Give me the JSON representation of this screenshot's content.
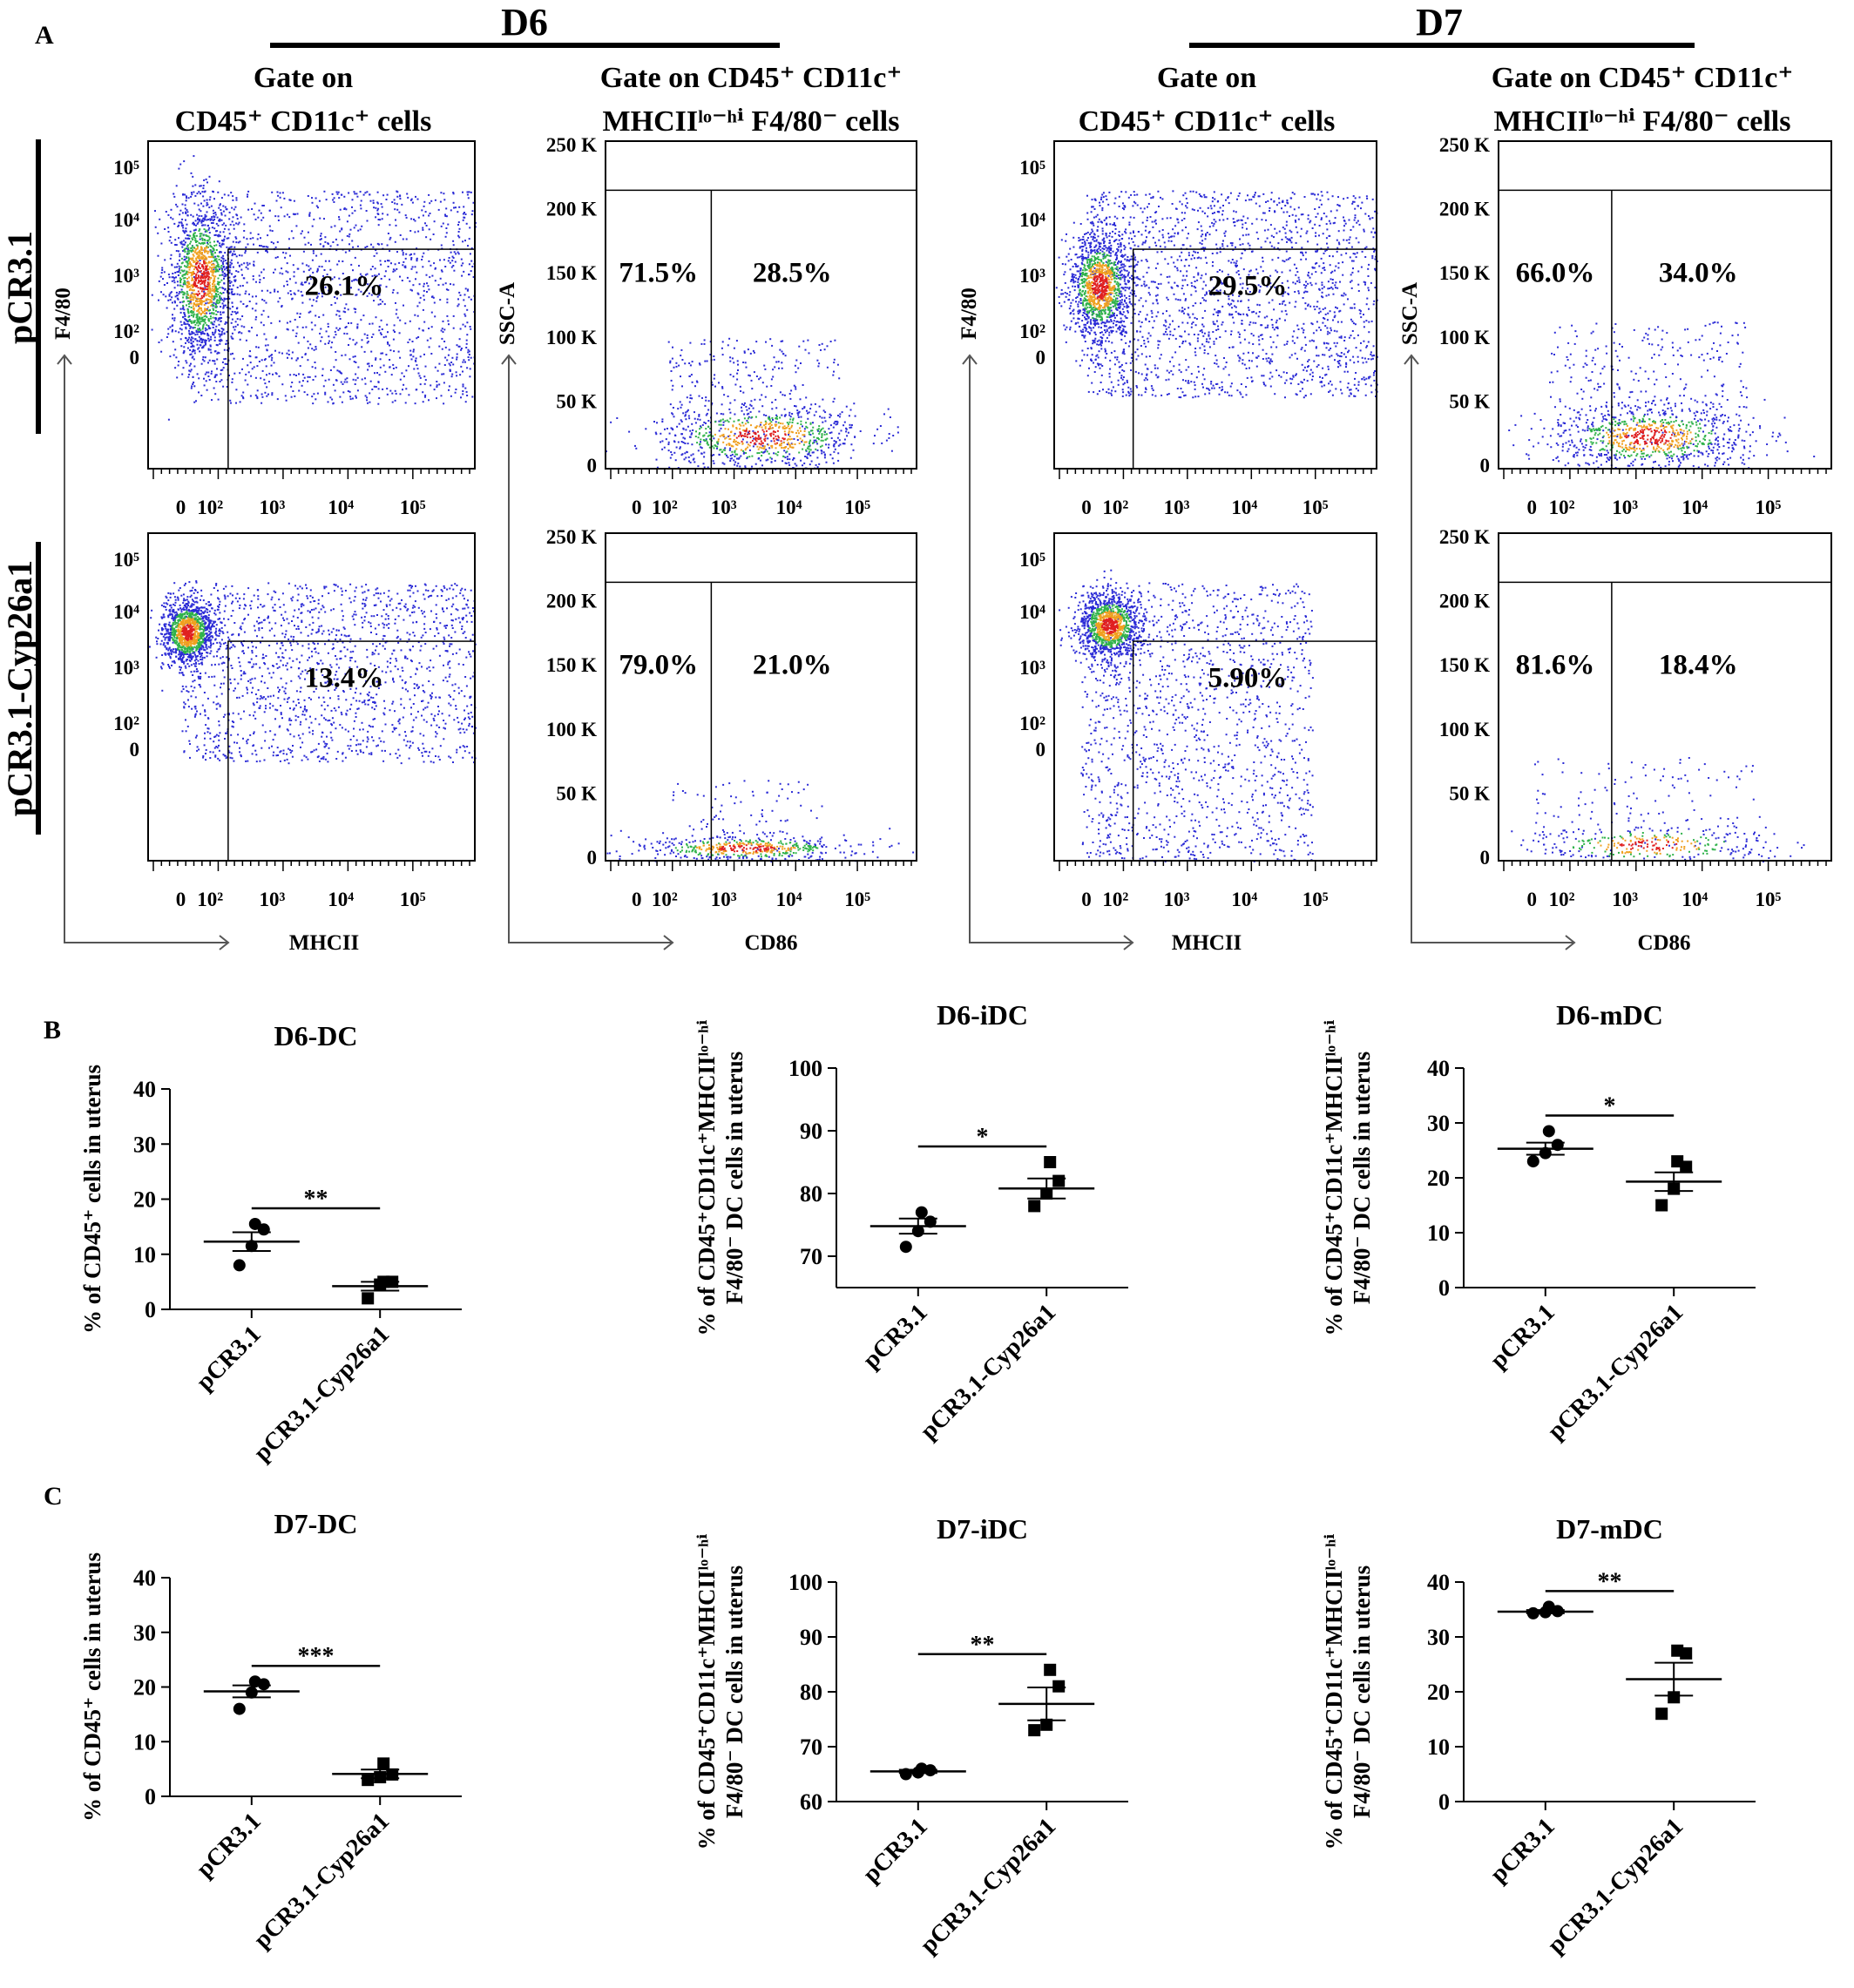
{
  "panel_labels": [
    "A",
    "B",
    "C"
  ],
  "group_labels": {
    "d6": "D6",
    "d7": "D7"
  },
  "row_labels": [
    "pCR3.1",
    "pCR3.1-Cyp26a1"
  ],
  "column_headers": {
    "gate1_line1": "Gate on",
    "gate1_line2": "CD45⁺ CD11c⁺ cells",
    "gate2_line1": "Gate on CD45⁺ CD11c⁺",
    "gate2_line2": "MHCIIˡᵒ⁻ʰⁱ F4/80⁻ cells"
  },
  "flow_axes": {
    "f480": "F4/80",
    "mhcii": "MHCII",
    "ssc": "SSC-A",
    "cd86": "CD86",
    "log_ticks": [
      "0",
      "10²",
      "10³",
      "10⁴",
      "10⁵"
    ],
    "ssc_ticks": [
      "0",
      "50 K",
      "100 K",
      "150 K",
      "200 K",
      "250 K"
    ]
  },
  "chart_data": [
    {
      "type": "scatter",
      "id": "flow-d6-pcr-mhcii",
      "group": "D6",
      "row": "pCR3.1",
      "xlabel": "MHCII",
      "ylabel": "F4/80",
      "gate_label": "26.1%",
      "gate": {
        "x_from": "10³ (approx. 300)",
        "y_to": "~2.5×10³"
      }
    },
    {
      "type": "scatter",
      "id": "flow-d6-pcr-cd86",
      "group": "D6",
      "row": "pCR3.1",
      "xlabel": "CD86",
      "ylabel": "SSC-A",
      "gate_labels": [
        "71.5%",
        "28.5%"
      ]
    },
    {
      "type": "scatter",
      "id": "flow-d7-pcr-mhcii",
      "group": "D7",
      "row": "pCR3.1",
      "xlabel": "MHCII",
      "ylabel": "F4/80",
      "gate_label": "29.5%"
    },
    {
      "type": "scatter",
      "id": "flow-d7-pcr-cd86",
      "group": "D7",
      "row": "pCR3.1",
      "xlabel": "CD86",
      "ylabel": "SSC-A",
      "gate_labels": [
        "66.0%",
        "34.0%"
      ]
    },
    {
      "type": "scatter",
      "id": "flow-d6-cyp-mhcii",
      "group": "D6",
      "row": "pCR3.1-Cyp26a1",
      "xlabel": "MHCII",
      "ylabel": "F4/80",
      "gate_label": "13.4%"
    },
    {
      "type": "scatter",
      "id": "flow-d6-cyp-cd86",
      "group": "D6",
      "row": "pCR3.1-Cyp26a1",
      "xlabel": "CD86",
      "ylabel": "SSC-A",
      "gate_labels": [
        "79.0%",
        "21.0%"
      ]
    },
    {
      "type": "scatter",
      "id": "flow-d7-cyp-mhcii",
      "group": "D7",
      "row": "pCR3.1-Cyp26a1",
      "xlabel": "MHCII",
      "ylabel": "F4/80",
      "gate_label": "5.90%"
    },
    {
      "type": "scatter",
      "id": "flow-d7-cyp-cd86",
      "group": "D7",
      "row": "pCR3.1-Cyp26a1",
      "xlabel": "CD86",
      "ylabel": "SSC-A",
      "gate_labels": [
        "81.6%",
        "18.4%"
      ]
    },
    {
      "type": "scatter",
      "id": "d6-dc",
      "title": "D6-DC",
      "ylabel": "% of CD45⁺ cells in uterus",
      "categories": [
        "pCR3.1",
        "pCR3.1-Cyp26a1"
      ],
      "ylim": [
        0,
        40
      ],
      "yticks": [
        0,
        10,
        20,
        30,
        40
      ],
      "significance": "**",
      "series": [
        {
          "marker": "circle",
          "values": [
            8,
            11.5,
            14.5,
            15.5
          ],
          "mean": 12.3,
          "sem": 1.7
        },
        {
          "marker": "square",
          "values": [
            2,
            4.5,
            5,
            5
          ],
          "mean": 4.2,
          "sem": 0.8
        }
      ]
    },
    {
      "type": "scatter",
      "id": "d6-idc",
      "title": "D6-iDC",
      "ylabel": "% of CD45⁺CD11c⁺MHCIIˡᵒ⁻ʰⁱ F4/80⁻ DC cells in uterus",
      "categories": [
        "pCR3.1",
        "pCR3.1-Cyp26a1"
      ],
      "ylim": [
        65,
        100
      ],
      "yticks": [
        70,
        80,
        90,
        100
      ],
      "significance": "*",
      "series": [
        {
          "marker": "circle",
          "values": [
            71.5,
            74,
            75.5,
            77
          ],
          "mean": 74.8,
          "sem": 1.2
        },
        {
          "marker": "square",
          "values": [
            78,
            80,
            82,
            85
          ],
          "mean": 80.8,
          "sem": 1.6
        }
      ]
    },
    {
      "type": "scatter",
      "id": "d6-mdc",
      "title": "D6-mDC",
      "ylabel": "% of CD45⁺CD11c⁺MHCIIˡᵒ⁻ʰⁱ F4/80⁻ DC cells in uterus",
      "categories": [
        "pCR3.1",
        "pCR3.1-Cyp26a1"
      ],
      "ylim": [
        0,
        40
      ],
      "yticks": [
        0,
        10,
        20,
        30,
        40
      ],
      "significance": "*",
      "series": [
        {
          "marker": "circle",
          "values": [
            23,
            24.5,
            26,
            28.5
          ],
          "mean": 25.3,
          "sem": 1.1
        },
        {
          "marker": "square",
          "values": [
            15,
            18,
            22,
            23
          ],
          "mean": 19.3,
          "sem": 1.7
        }
      ]
    },
    {
      "type": "scatter",
      "id": "d7-dc",
      "title": "D7-DC",
      "ylabel": "% of CD45⁺ cells in uterus",
      "categories": [
        "pCR3.1",
        "pCR3.1-Cyp26a1"
      ],
      "ylim": [
        0,
        40
      ],
      "yticks": [
        0,
        10,
        20,
        30,
        40
      ],
      "significance": "***",
      "series": [
        {
          "marker": "circle",
          "values": [
            16,
            19,
            20.5,
            21
          ],
          "mean": 19.2,
          "sem": 1.1
        },
        {
          "marker": "square",
          "values": [
            3,
            3.5,
            4,
            6
          ],
          "mean": 4.1,
          "sem": 0.8
        }
      ]
    },
    {
      "type": "scatter",
      "id": "d7-idc",
      "title": "D7-iDC",
      "ylabel": "% of CD45⁺CD11c⁺MHCIIˡᵒ⁻ʰⁱ F4/80⁻ DC cells in uterus",
      "categories": [
        "pCR3.1",
        "pCR3.1-Cyp26a1"
      ],
      "ylim": [
        60,
        100
      ],
      "yticks": [
        60,
        70,
        80,
        90,
        100
      ],
      "significance": "**",
      "series": [
        {
          "marker": "circle",
          "values": [
            65,
            65.3,
            65.7,
            66
          ],
          "mean": 65.5,
          "sem": 0.3
        },
        {
          "marker": "square",
          "values": [
            73,
            74,
            81,
            84
          ],
          "mean": 77.8,
          "sem": 3.0
        }
      ]
    },
    {
      "type": "scatter",
      "id": "d7-mdc",
      "title": "D7-mDC",
      "ylabel": "% of CD45⁺CD11c⁺MHCIIˡᵒ⁻ʰⁱ F4/80⁻ DC cells in uterus",
      "categories": [
        "pCR3.1",
        "pCR3.1-Cyp26a1"
      ],
      "ylim": [
        0,
        40
      ],
      "yticks": [
        0,
        10,
        20,
        30,
        40
      ],
      "significance": "**",
      "series": [
        {
          "marker": "circle",
          "values": [
            34.3,
            34.5,
            34.7,
            35.5
          ],
          "mean": 34.6,
          "sem": 0.3
        },
        {
          "marker": "square",
          "values": [
            16,
            19,
            27,
            27.5
          ],
          "mean": 22.3,
          "sem": 3.0
        }
      ]
    }
  ]
}
